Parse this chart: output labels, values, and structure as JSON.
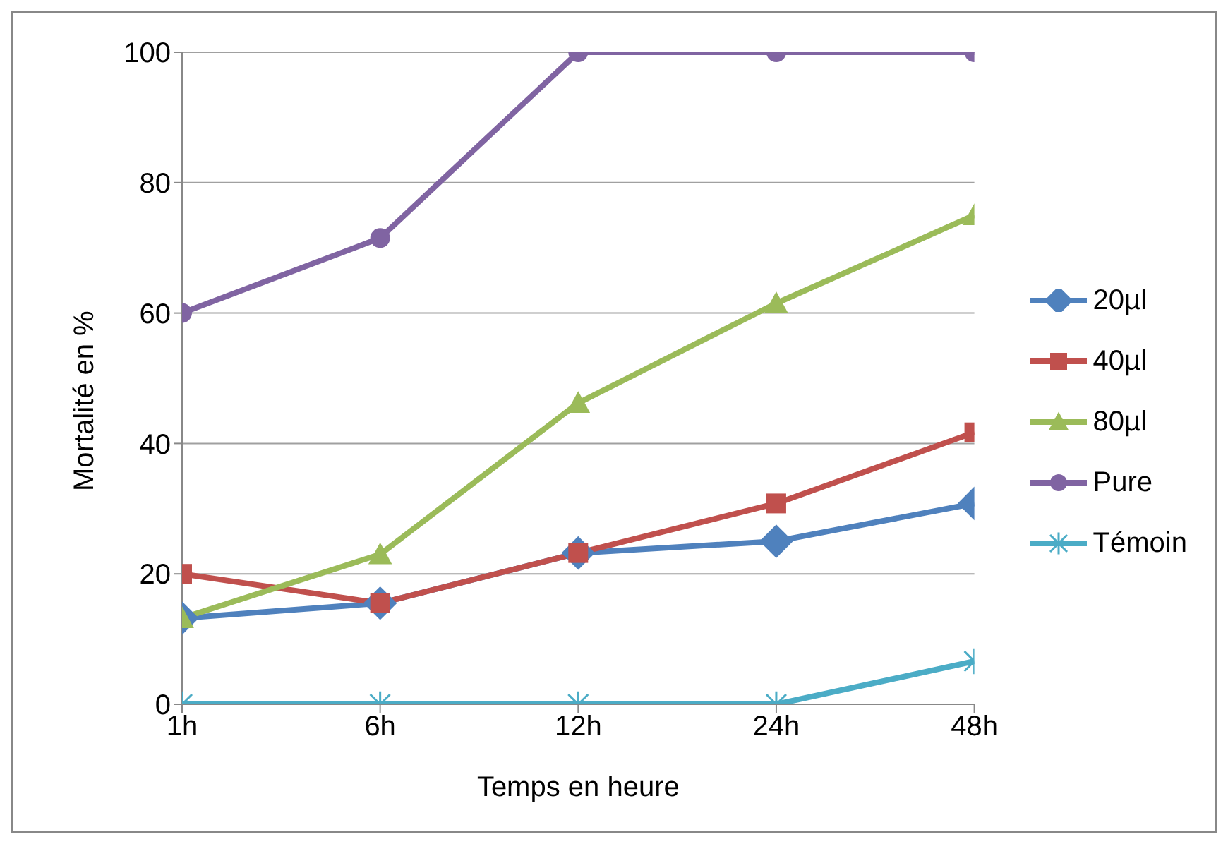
{
  "chart_data": {
    "type": "line",
    "xlabel": "Temps en heure",
    "ylabel": "Mortalité en %",
    "categories": [
      "1h",
      "6h",
      "12h",
      "24h",
      "48h"
    ],
    "series": [
      {
        "name": "20µl",
        "color": "#4f81bd",
        "marker": "diamond",
        "values": [
          13.2,
          15.5,
          23.2,
          25,
          30.8
        ]
      },
      {
        "name": "40µl",
        "color": "#c0504d",
        "marker": "square",
        "values": [
          20,
          15.5,
          23.2,
          30.8,
          41.7
        ]
      },
      {
        "name": "80µl",
        "color": "#9bbb59",
        "marker": "triangle",
        "values": [
          13.2,
          23,
          46.2,
          61.5,
          75
        ]
      },
      {
        "name": "Pure",
        "color": "#8064a2",
        "marker": "circle",
        "values": [
          60,
          71.5,
          100,
          100,
          100
        ]
      },
      {
        "name": "Témoin",
        "color": "#4bacc6",
        "marker": "cross",
        "values": [
          0,
          0,
          0,
          0,
          6.6
        ]
      }
    ],
    "ylim": [
      0,
      100
    ],
    "yticks": [
      0,
      20,
      40,
      60,
      80,
      100
    ],
    "grid": "y",
    "legend": "right"
  }
}
